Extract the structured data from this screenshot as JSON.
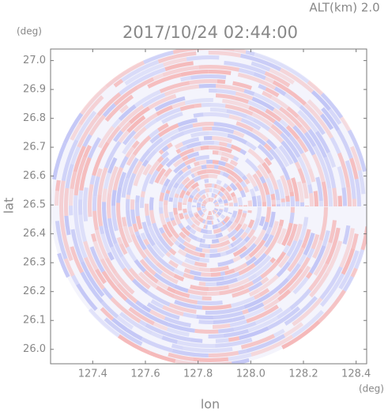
{
  "chart_data": {
    "type": "radar-field",
    "title": "2017/10/24 02:44:00",
    "subtitle": "ALT(km) 2.0",
    "x_label": "lon",
    "y_label": "lat",
    "x_unit": "(deg)",
    "y_unit": "(deg)",
    "xlim": [
      127.24,
      128.44
    ],
    "ylim": [
      25.95,
      27.04
    ],
    "xticks": [
      127.4,
      127.6,
      127.8,
      {
        "value": 128.0,
        "label": "128.0"
      },
      128.2,
      128.4
    ],
    "yticks": [
      {
        "value": 26.0,
        "label": "26.0"
      },
      26.1,
      26.2,
      26.3,
      26.4,
      26.5,
      26.6,
      26.7,
      26.8,
      26.9,
      {
        "value": 27.0,
        "label": "27.0"
      }
    ],
    "colors": [
      "#f5b3b3",
      "#bcc0f5"
    ]
  }
}
